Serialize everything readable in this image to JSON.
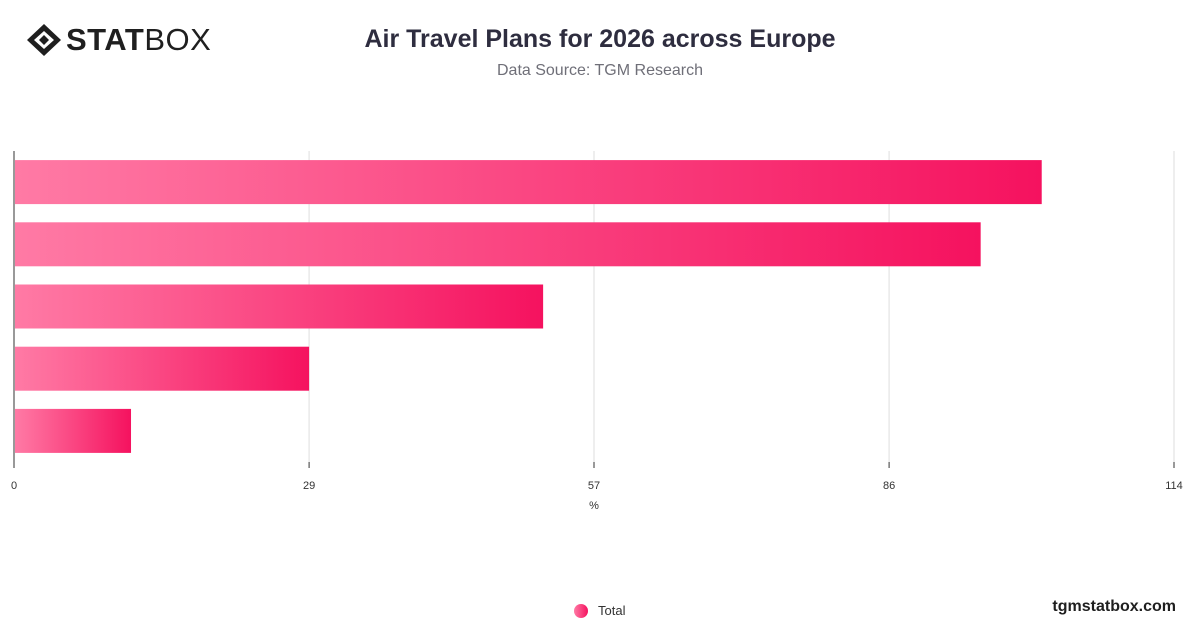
{
  "brand": {
    "logo_bold": "STAT",
    "logo_light": "BOX",
    "website": "tgmstatbox.com"
  },
  "header": {
    "title": "Air Travel Plans for 2026 across Europe",
    "subtitle": "Data Source: TGM Research"
  },
  "legend": {
    "label": "Total"
  },
  "colors": {
    "bar_start": "#ff7aa5",
    "bar_end": "#f5125f",
    "grid": "#dedede",
    "axis": "#333333"
  },
  "chart_data": {
    "type": "bar",
    "orientation": "horizontal",
    "category_labels_shown": false,
    "series": [
      {
        "name": "Total",
        "values": [
          101,
          95,
          52,
          29,
          11.5
        ]
      }
    ],
    "xlim": [
      0,
      114
    ],
    "xticks": [
      0,
      29,
      57,
      86,
      114
    ],
    "xlabel": "%",
    "grid": true,
    "legend_position": "bottom-center"
  }
}
